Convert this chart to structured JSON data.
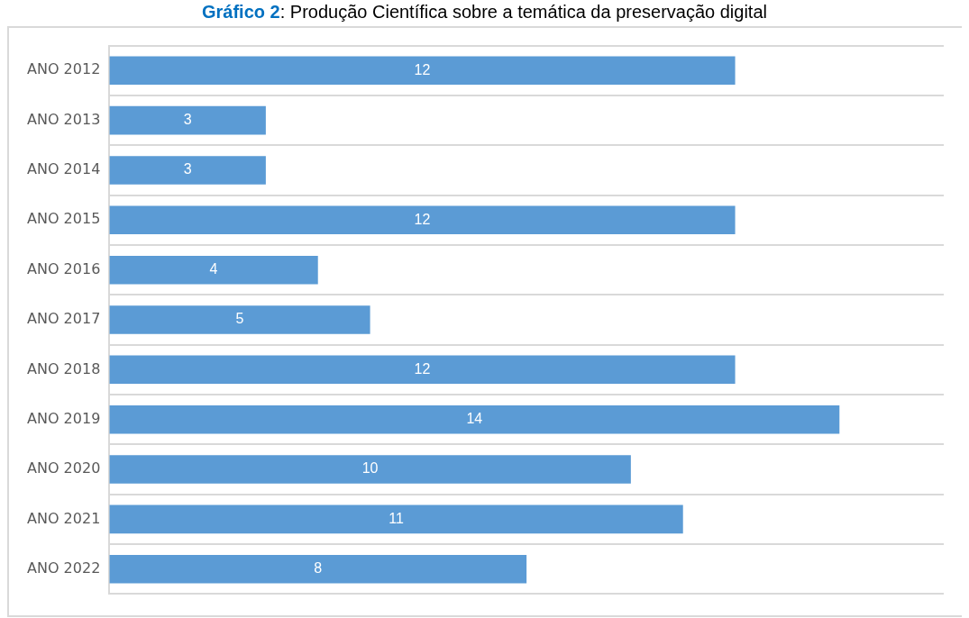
{
  "chart_data": {
    "type": "bar",
    "orientation": "horizontal",
    "title": "Gráfico 2: Produção Científica sobre a temática da preservação digital",
    "categories": [
      "ANO 2012",
      "ANO 2013",
      "ANO 2014",
      "ANO 2015",
      "ANO 2016",
      "ANO 2017",
      "ANO 2018",
      "ANO 2019",
      "ANO 2020",
      "ANO 2021",
      "ANO 2022"
    ],
    "values": [
      12,
      3,
      3,
      12,
      4,
      5,
      12,
      14,
      10,
      11,
      8
    ],
    "color": "#5b9bd5",
    "xlim": [
      0,
      16
    ],
    "data_labels": true,
    "grid": "y",
    "tick_labels": "y"
  }
}
